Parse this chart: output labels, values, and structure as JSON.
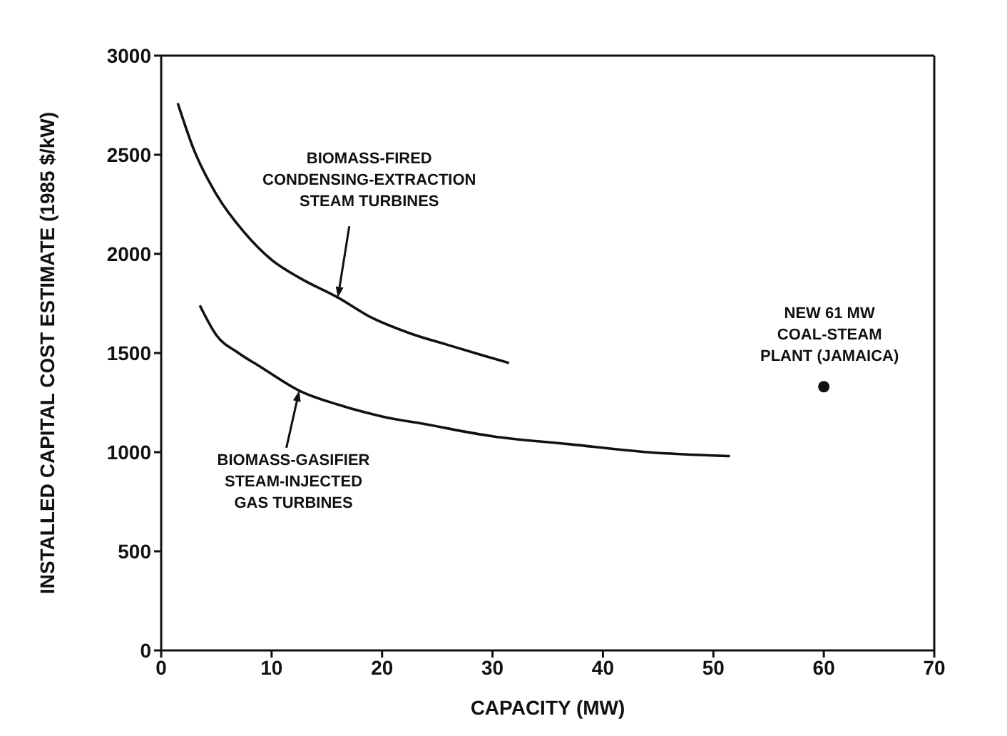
{
  "chart_data": {
    "type": "line",
    "xlabel": "CAPACITY (MW)",
    "ylabel": "INSTALLED CAPITAL COST ESTIMATE (1985 $/kW)",
    "xlim": [
      0,
      70
    ],
    "xticks": [
      0,
      10,
      20,
      30,
      40,
      50,
      60,
      70
    ],
    "ylim": [
      0,
      3000
    ],
    "yticks": [
      0,
      500,
      1000,
      1500,
      2000,
      2500,
      3000
    ],
    "grid": false,
    "marker": "none",
    "line_style": "solid",
    "series": [
      {
        "color": "#111111",
        "x": [
          1.5,
          3,
          5,
          7.5,
          10,
          12.5,
          16,
          19,
          22.5,
          26,
          29,
          31.5
        ],
        "values": [
          2760,
          2520,
          2300,
          2110,
          1970,
          1880,
          1780,
          1680,
          1600,
          1540,
          1490,
          1450
        ]
      },
      {
        "color": "#111111",
        "x": [
          3.5,
          5,
          7,
          9,
          12.5,
          16,
          20,
          24,
          30,
          37,
          44,
          51.5
        ],
        "values": [
          1740,
          1590,
          1500,
          1430,
          1310,
          1240,
          1180,
          1140,
          1080,
          1040,
          1000,
          980
        ]
      },
      {
        "type": "scatter",
        "color": "#111111",
        "marker": "circle",
        "x": [
          60
        ],
        "values": [
          1330
        ]
      }
    ],
    "annotations": [
      {
        "text": "BIOMASS-FIRED\nCONDENSING-EXTRACTION\nSTEAM TURBINES",
        "x": 16,
        "y": 1780
      },
      {
        "text": "BIOMASS-GASIFIER\nSTEAM-INJECTED\nGAS TURBINES",
        "x": 12.5,
        "y": 1310
      },
      {
        "text": "NEW 61 MW\nCOAL-STEAM\nPLANT (JAMAICA)",
        "x": 60,
        "y": 1330
      }
    ]
  }
}
